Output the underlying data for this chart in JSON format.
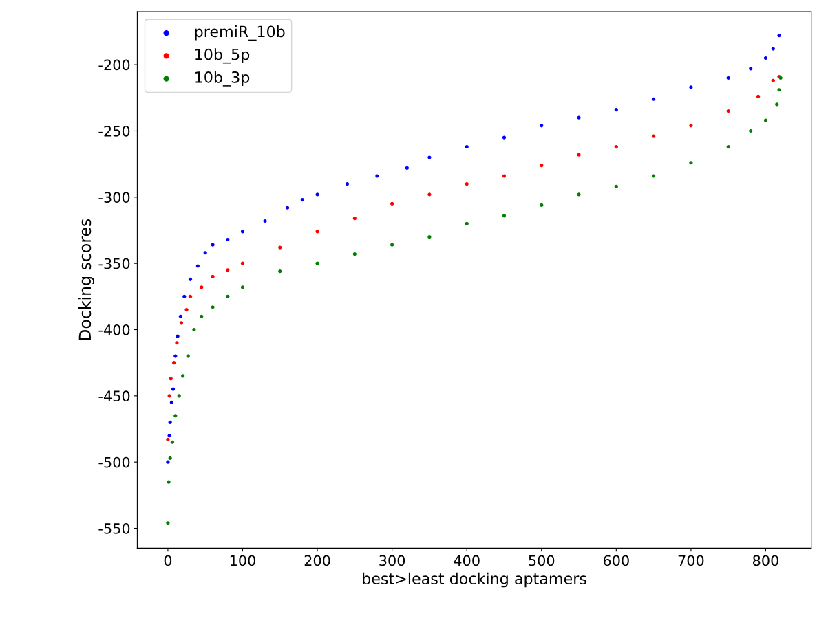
{
  "chart_data": {
    "type": "scatter",
    "xlabel": "best>least docking aptamers",
    "ylabel": "Docking scores",
    "xlim": [
      -41,
      861
    ],
    "ylim": [
      -565,
      -160
    ],
    "xticks": [
      0,
      100,
      200,
      300,
      400,
      500,
      600,
      700,
      800
    ],
    "yticks": [
      -550,
      -500,
      -450,
      -400,
      -350,
      -300,
      -250,
      -200
    ],
    "legend": "top left",
    "grid": false,
    "marker": "circle",
    "series": [
      {
        "name": "premiR_10b",
        "color": "#0000ff",
        "x": [
          0,
          2,
          3,
          5,
          7,
          10,
          13,
          17,
          22,
          30,
          40,
          50,
          60,
          80,
          100,
          130,
          160,
          180,
          200,
          240,
          280,
          320,
          350,
          400,
          450,
          500,
          550,
          600,
          650,
          700,
          750,
          780,
          800,
          810,
          818
        ],
        "values": [
          -500,
          -480,
          -470,
          -455,
          -445,
          -420,
          -405,
          -390,
          -375,
          -362,
          -352,
          -342,
          -336,
          -332,
          -326,
          -318,
          -308,
          -302,
          -298,
          -290,
          -284,
          -278,
          -270,
          -262,
          -255,
          -246,
          -240,
          -234,
          -226,
          -217,
          -210,
          -203,
          -195,
          -188,
          -178
        ]
      },
      {
        "name": "10b_5p",
        "color": "#ff0000",
        "x": [
          0,
          2,
          4,
          8,
          12,
          18,
          25,
          30,
          45,
          60,
          80,
          100,
          150,
          200,
          250,
          300,
          350,
          400,
          450,
          500,
          550,
          600,
          650,
          700,
          750,
          790,
          810,
          818
        ],
        "values": [
          -483,
          -450,
          -437,
          -425,
          -410,
          -395,
          -385,
          -375,
          -368,
          -360,
          -355,
          -350,
          -338,
          -326,
          -316,
          -305,
          -298,
          -290,
          -284,
          -276,
          -268,
          -262,
          -254,
          -246,
          -235,
          -224,
          -212,
          -209
        ]
      },
      {
        "name": "10b_3p",
        "color": "#008000",
        "x": [
          0,
          1,
          3,
          6,
          10,
          15,
          20,
          27,
          35,
          45,
          60,
          80,
          100,
          150,
          200,
          250,
          300,
          350,
          400,
          450,
          500,
          550,
          600,
          650,
          700,
          750,
          780,
          800,
          815,
          818,
          820
        ],
        "values": [
          -546,
          -515,
          -497,
          -485,
          -465,
          -450,
          -435,
          -420,
          -400,
          -390,
          -383,
          -375,
          -368,
          -356,
          -350,
          -343,
          -336,
          -330,
          -320,
          -314,
          -306,
          -298,
          -292,
          -284,
          -274,
          -262,
          -250,
          -242,
          -230,
          -219,
          -210
        ]
      }
    ]
  }
}
